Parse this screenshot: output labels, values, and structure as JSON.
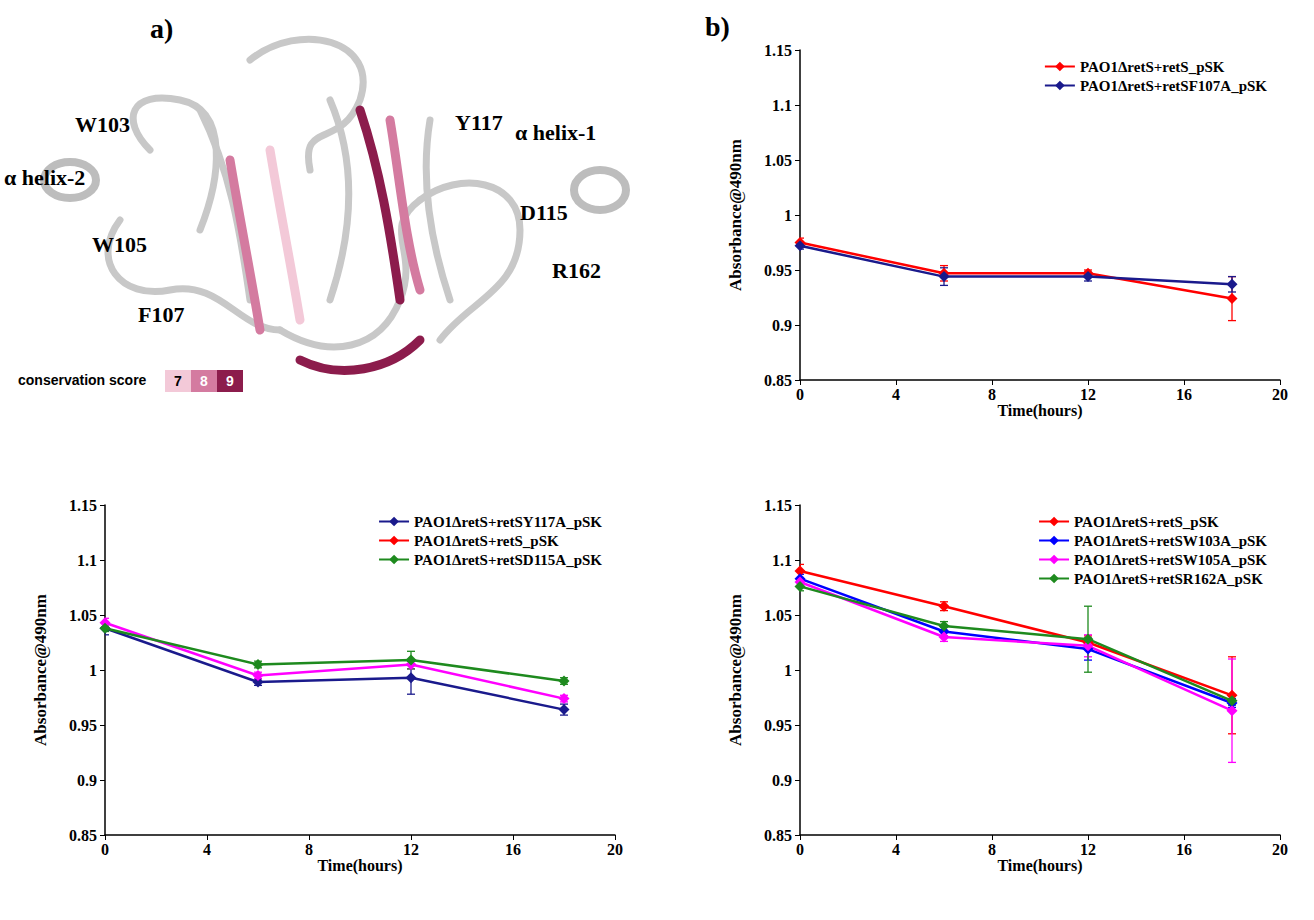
{
  "panels": [
    "a)",
    "b)"
  ],
  "structure": {
    "labels": [
      "W103",
      "α helix-2",
      "W105",
      "F107",
      "Y117",
      "α helix-1",
      "D115",
      "R162"
    ],
    "conservation_score": {
      "title": "conservation score",
      "levels": [
        7,
        8,
        9
      ],
      "colors": [
        "#f3c9d8",
        "#d47ba0",
        "#8c1c4c"
      ]
    }
  },
  "chart_data": [
    {
      "type": "line",
      "xlabel": "Time(hours)",
      "ylabel": "Absorbance@490nm",
      "x": [
        0,
        6,
        12,
        18
      ],
      "xlim": [
        0,
        20
      ],
      "xticks": [
        0,
        4,
        8,
        12,
        16,
        20
      ],
      "ylim": [
        0.85,
        1.15
      ],
      "yticks": [
        0.85,
        0.9,
        0.95,
        1,
        1.05,
        1.1,
        1.15
      ],
      "grid": false,
      "legend": "upper right",
      "marker": "diamond",
      "series": [
        {
          "name": "PAO1ΔretS+retS_pSK",
          "color": "#ff0000",
          "values": [
            0.975,
            0.947,
            0.947,
            0.924
          ],
          "errors": [
            0.004,
            0.007,
            0.003,
            0.02
          ]
        },
        {
          "name": "PAO1ΔretS+retSF107A_pSK",
          "color": "#1a1a8c",
          "values": [
            0.972,
            0.944,
            0.944,
            0.937
          ],
          "errors": [
            0.003,
            0.008,
            0.004,
            0.007
          ]
        }
      ]
    },
    {
      "type": "line",
      "xlabel": "Time(hours)",
      "ylabel": "Absorbance@490nm",
      "x": [
        0,
        6,
        12,
        18
      ],
      "xlim": [
        0,
        20
      ],
      "xticks": [
        0,
        4,
        8,
        12,
        16,
        20
      ],
      "ylim": [
        0.85,
        1.15
      ],
      "yticks": [
        0.85,
        0.9,
        0.95,
        1,
        1.05,
        1.1,
        1.15
      ],
      "grid": false,
      "legend": "upper right",
      "marker": "diamond",
      "series": [
        {
          "name": "PAO1ΔretS+retSY117A_pSK",
          "color": "#1a1a8c",
          "values": [
            1.038,
            0.989,
            0.993,
            0.964
          ],
          "errors": [
            0.006,
            0.003,
            0.015,
            0.005
          ]
        },
        {
          "name": "PAO1ΔretS+retS_pSK",
          "color": "#ff00ff",
          "values": [
            1.043,
            0.995,
            1.005,
            0.974
          ],
          "errors": [
            0.004,
            0.003,
            0.004,
            0.003
          ]
        },
        {
          "name": "PAO1ΔretS+retSD115A_pSK",
          "color": "#1e8a1e",
          "values": [
            1.038,
            1.005,
            1.009,
            0.99
          ],
          "errors": [
            0.003,
            0.003,
            0.008,
            0.003
          ]
        }
      ]
    },
    {
      "type": "line",
      "xlabel": "Time(hours)",
      "ylabel": "Absorbance@490nm",
      "x": [
        0,
        6,
        12,
        18
      ],
      "xlim": [
        0,
        20
      ],
      "xticks": [
        0,
        4,
        8,
        12,
        16,
        20
      ],
      "ylim": [
        0.85,
        1.15
      ],
      "yticks": [
        0.85,
        0.9,
        0.95,
        1,
        1.05,
        1.1,
        1.15
      ],
      "grid": false,
      "legend": "upper right",
      "marker": "diamond",
      "series": [
        {
          "name": "PAO1ΔretS+retS_pSK",
          "color": "#ff0000",
          "values": [
            1.09,
            1.058,
            1.025,
            0.977
          ],
          "errors": [
            0.006,
            0.004,
            0.006,
            0.035
          ]
        },
        {
          "name": "PAO1ΔretS+retSW103A_pSK",
          "color": "#0000ff",
          "values": [
            1.083,
            1.035,
            1.019,
            0.97
          ],
          "errors": [
            0.004,
            0.004,
            0.01,
            0.004
          ]
        },
        {
          "name": "PAO1ΔretS+retSW105A_pSK",
          "color": "#ff00ff",
          "values": [
            1.08,
            1.03,
            1.022,
            0.963
          ],
          "errors": [
            0.004,
            0.004,
            0.01,
            0.047
          ]
        },
        {
          "name": "PAO1ΔretS+retSR162A_pSK",
          "color": "#1e8a1e",
          "values": [
            1.076,
            1.04,
            1.028,
            0.972
          ],
          "errors": [
            0.004,
            0.004,
            0.03,
            0.004
          ]
        }
      ]
    }
  ]
}
